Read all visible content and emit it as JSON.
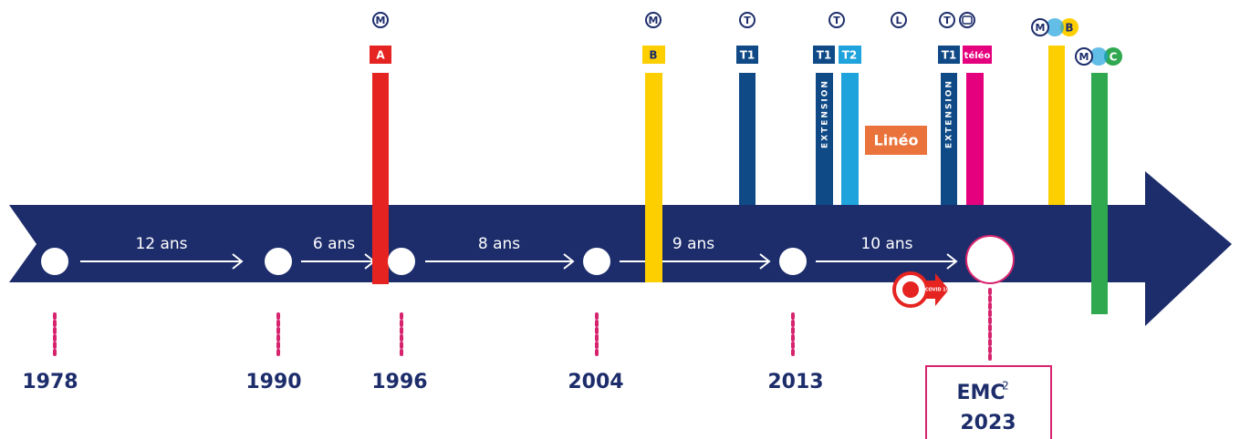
{
  "timeline": {
    "years": [
      "1978",
      "1990",
      "1996",
      "2004",
      "2013"
    ],
    "intervals": [
      "12 ans",
      "6 ans",
      "8 ans",
      "9 ans",
      "10 ans"
    ],
    "milestone": {
      "name": "EMC",
      "sup": "2",
      "year": "2023"
    },
    "covid": "COVID 19"
  },
  "lines": {
    "metro_icon": "M",
    "tram_icon": "T",
    "lineo_icon": "L",
    "a": "A",
    "b": "B",
    "c": "C",
    "t1": "T1",
    "t2": "T2",
    "extension": "EXTENSION",
    "lineo": "Linéo",
    "teleo": "téléo"
  }
}
